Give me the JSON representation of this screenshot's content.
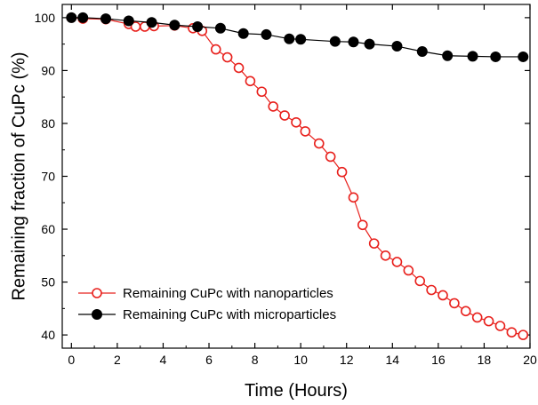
{
  "chart_data": {
    "type": "line",
    "xlabel": "Time (Hours)",
    "ylabel": "Remaining fraction of CuPc (%)",
    "xlim": [
      -0.4,
      20
    ],
    "ylim": [
      37.5,
      102.5
    ],
    "xticks": [
      0,
      2,
      4,
      6,
      8,
      10,
      12,
      14,
      16,
      18,
      20
    ],
    "yticks": [
      40,
      50,
      60,
      70,
      80,
      90,
      100
    ],
    "grid": false,
    "legend_position": "bottom-left",
    "series": [
      {
        "name": "Remaining CuPc with nanoparticles",
        "color": "#e8201c",
        "marker": "open-circle",
        "x": [
          0,
          0.5,
          1.5,
          2.5,
          2.8,
          3.2,
          3.6,
          4.5,
          5.3,
          5.7,
          6.3,
          6.8,
          7.3,
          7.8,
          8.3,
          8.8,
          9.3,
          9.8,
          10.2,
          10.8,
          11.3,
          11.8,
          12.3,
          12.7,
          13.2,
          13.7,
          14.2,
          14.7,
          15.2,
          15.7,
          16.2,
          16.7,
          17.2,
          17.7,
          18.2,
          18.7,
          19.2,
          19.7
        ],
        "y": [
          100,
          99.8,
          99.7,
          98.8,
          98.3,
          98.3,
          98.4,
          98.5,
          98,
          97.5,
          94,
          92.5,
          90.5,
          88,
          86,
          83.2,
          81.5,
          80.2,
          78.5,
          76.2,
          73.7,
          70.8,
          66,
          60.8,
          57.3,
          55,
          53.8,
          52.2,
          50.2,
          48.5,
          47.5,
          46,
          44.5,
          43.3,
          42.6,
          41.7,
          40.5,
          40
        ]
      },
      {
        "name": "Remaining CuPc with microparticles",
        "color": "#000000",
        "marker": "filled-circle",
        "x": [
          0,
          0.5,
          1.5,
          2.5,
          3.5,
          4.5,
          5.5,
          6.5,
          7.5,
          8.5,
          9.5,
          10.0,
          11.5,
          12.3,
          13.0,
          14.2,
          15.3,
          16.4,
          17.5,
          18.5,
          19.7
        ],
        "y": [
          100,
          100,
          99.8,
          99.4,
          99.1,
          98.6,
          98.3,
          98,
          97,
          96.8,
          96,
          95.9,
          95.5,
          95.4,
          95,
          94.6,
          93.6,
          92.8,
          92.7,
          92.6,
          92.6
        ]
      }
    ]
  }
}
